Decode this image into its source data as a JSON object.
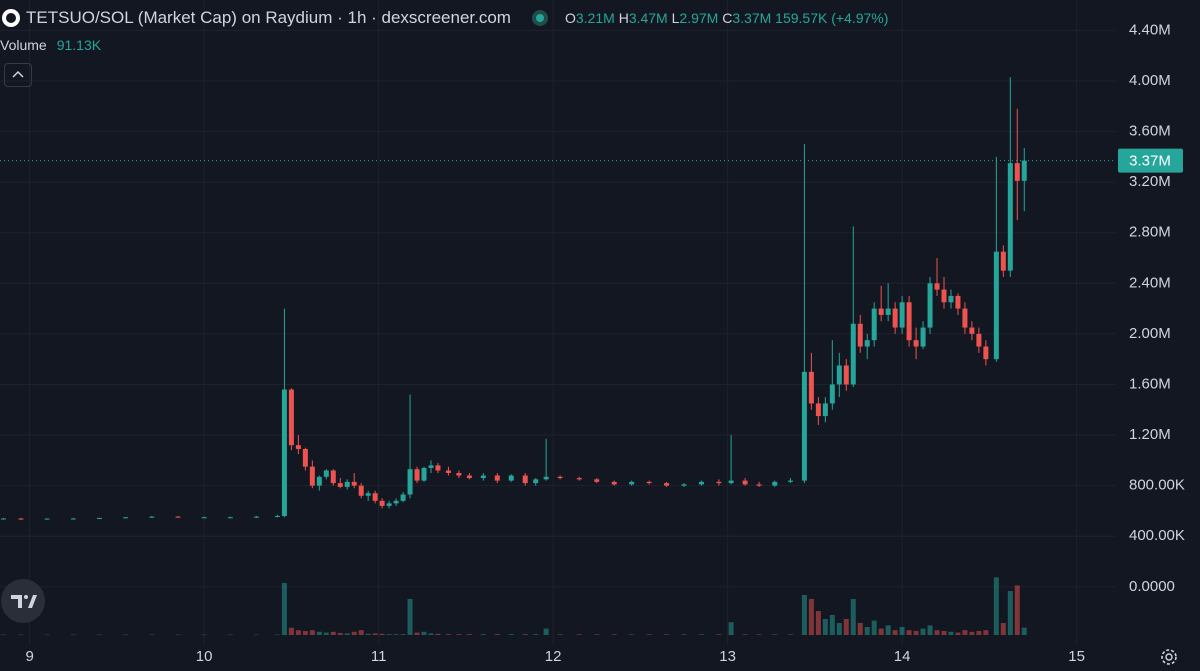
{
  "chart_data": {
    "type": "candlestick",
    "title": "TETSUO/SOL (Market Cap) on Raydium · 1h · dexscreener.com",
    "ohlc_letters": [
      "O",
      "H",
      "L",
      "C"
    ],
    "legend": [
      {
        "value": 3210000,
        "label": "3.21M"
      },
      {
        "value": 3470000,
        "label": "3.47M"
      },
      {
        "value": 2970000,
        "label": "2.97M"
      },
      {
        "value": 3370000,
        "label": "3.37M"
      }
    ],
    "change": {
      "value": 159570,
      "label": "159.57K (+4.97%)"
    },
    "volume_title": "Volume",
    "volume_legend": {
      "value": 91130,
      "label": "91.13K"
    },
    "last_price": {
      "value": 3370000,
      "label": "3.37M"
    },
    "up_color": "#26a69a",
    "down_color": "#ef5350",
    "x": [
      8.85,
      8.95,
      9.1,
      9.25,
      9.4,
      9.55,
      9.7,
      9.85,
      10,
      10.15,
      10.3,
      10.42,
      10.46,
      10.5,
      10.54,
      10.58,
      10.62,
      10.66,
      10.7,
      10.74,
      10.78,
      10.82,
      10.86,
      10.9,
      10.94,
      10.98,
      11.02,
      11.06,
      11.1,
      11.14,
      11.18,
      11.22,
      11.26,
      11.3,
      11.34,
      11.4,
      11.46,
      11.52,
      11.6,
      11.68,
      11.76,
      11.84,
      11.9,
      11.96,
      12.04,
      12.15,
      12.25,
      12.35,
      12.45,
      12.55,
      12.65,
      12.75,
      12.85,
      12.95,
      13.02,
      13.1,
      13.18,
      13.27,
      13.36,
      13.44,
      13.48,
      13.52,
      13.56,
      13.6,
      13.64,
      13.68,
      13.72,
      13.76,
      13.8,
      13.84,
      13.88,
      13.92,
      13.96,
      14,
      14.04,
      14.08,
      14.12,
      14.16,
      14.2,
      14.24,
      14.28,
      14.32,
      14.36,
      14.4,
      14.44,
      14.48,
      14.54,
      14.58,
      14.62,
      14.66,
      14.7
    ],
    "open": [
      540000,
      540000,
      535000,
      540000,
      540000,
      545000,
      550000,
      555000,
      550000,
      550000,
      550000,
      555000,
      560000,
      1560000,
      1120000,
      1090000,
      950000,
      800000,
      870000,
      920000,
      820000,
      790000,
      830000,
      800000,
      720000,
      740000,
      680000,
      640000,
      660000,
      680000,
      730000,
      930000,
      840000,
      940000,
      960000,
      920000,
      900000,
      880000,
      860000,
      880000,
      840000,
      880000,
      820000,
      850000,
      870000,
      860000,
      850000,
      830000,
      810000,
      830000,
      820000,
      800000,
      810000,
      830000,
      820000,
      840000,
      810000,
      800000,
      830000,
      840000,
      1700000,
      1450000,
      1350000,
      1450000,
      1600000,
      1750000,
      1600000,
      2080000,
      1900000,
      1950000,
      2200000,
      2150000,
      2200000,
      2050000,
      2250000,
      1950000,
      1900000,
      2050000,
      2400000,
      2350000,
      2250000,
      2300000,
      2200000,
      2050000,
      2000000,
      1900000,
      1800000,
      2650000,
      2500000,
      3350000,
      3210000
    ],
    "high": [
      545000,
      545000,
      540000,
      545000,
      545000,
      550000,
      560000,
      560000,
      555000,
      555000,
      560000,
      570000,
      2200000,
      1570000,
      1200000,
      1100000,
      1000000,
      880000,
      930000,
      930000,
      860000,
      850000,
      900000,
      820000,
      760000,
      760000,
      700000,
      680000,
      700000,
      750000,
      1520000,
      950000,
      950000,
      1000000,
      980000,
      950000,
      920000,
      900000,
      900000,
      900000,
      890000,
      900000,
      860000,
      1170000,
      880000,
      870000,
      860000,
      840000,
      840000,
      840000,
      830000,
      820000,
      840000,
      850000,
      1200000,
      860000,
      830000,
      840000,
      860000,
      3500000,
      1850000,
      1500000,
      1500000,
      1950000,
      1850000,
      1800000,
      2850000,
      2150000,
      2000000,
      2250000,
      2380000,
      2400000,
      2250000,
      2300000,
      2300000,
      2050000,
      2100000,
      2450000,
      2600000,
      2450000,
      2350000,
      2320000,
      2250000,
      2100000,
      2050000,
      1950000,
      3400000,
      2700000,
      4030000,
      3780000,
      3470000
    ],
    "low": [
      535000,
      530000,
      530000,
      535000,
      535000,
      540000,
      545000,
      550000,
      545000,
      545000,
      545000,
      550000,
      550000,
      1080000,
      1050000,
      920000,
      780000,
      760000,
      850000,
      800000,
      780000,
      770000,
      780000,
      700000,
      680000,
      660000,
      620000,
      620000,
      640000,
      670000,
      700000,
      820000,
      830000,
      900000,
      900000,
      880000,
      860000,
      850000,
      840000,
      820000,
      830000,
      800000,
      800000,
      840000,
      850000,
      840000,
      820000,
      800000,
      800000,
      810000,
      790000,
      790000,
      800000,
      800000,
      810000,
      800000,
      790000,
      790000,
      820000,
      820000,
      1400000,
      1280000,
      1300000,
      1400000,
      1500000,
      1550000,
      1580000,
      1850000,
      1800000,
      1900000,
      2100000,
      2100000,
      2000000,
      2000000,
      1900000,
      1800000,
      1880000,
      2000000,
      2300000,
      2200000,
      2200000,
      2150000,
      2000000,
      1950000,
      1850000,
      1750000,
      1780000,
      2450000,
      2450000,
      2900000,
      2970000
    ],
    "close": [
      540000,
      535000,
      540000,
      540000,
      545000,
      550000,
      555000,
      550000,
      550000,
      550000,
      555000,
      560000,
      1560000,
      1120000,
      1090000,
      950000,
      800000,
      870000,
      920000,
      820000,
      790000,
      830000,
      800000,
      720000,
      740000,
      680000,
      640000,
      660000,
      680000,
      730000,
      930000,
      840000,
      940000,
      960000,
      920000,
      900000,
      880000,
      860000,
      880000,
      840000,
      880000,
      820000,
      850000,
      870000,
      860000,
      850000,
      830000,
      810000,
      830000,
      820000,
      800000,
      810000,
      830000,
      820000,
      840000,
      810000,
      800000,
      830000,
      840000,
      1700000,
      1450000,
      1350000,
      1450000,
      1600000,
      1750000,
      1600000,
      2080000,
      1900000,
      1950000,
      2200000,
      2150000,
      2200000,
      2050000,
      2250000,
      1950000,
      1900000,
      2050000,
      2400000,
      2350000,
      2250000,
      2300000,
      2200000,
      2050000,
      2000000,
      1900000,
      1800000,
      2650000,
      2500000,
      3350000,
      3210000,
      3370000
    ],
    "volume": [
      5000,
      5000,
      5000,
      5000,
      5000,
      5000,
      5000,
      5000,
      5000,
      5000,
      5000,
      5000,
      650000,
      90000,
      60000,
      50000,
      60000,
      40000,
      30000,
      40000,
      25000,
      20000,
      40000,
      60000,
      15000,
      20000,
      15000,
      10000,
      10000,
      10000,
      450000,
      30000,
      40000,
      20000,
      15000,
      10000,
      10000,
      10000,
      10000,
      10000,
      10000,
      10000,
      10000,
      80000,
      8000,
      8000,
      8000,
      8000,
      8000,
      8000,
      8000,
      8000,
      8000,
      8000,
      160000,
      8000,
      8000,
      8000,
      8000,
      500000,
      450000,
      300000,
      200000,
      250000,
      150000,
      200000,
      450000,
      150000,
      100000,
      180000,
      80000,
      120000,
      60000,
      100000,
      60000,
      50000,
      80000,
      120000,
      60000,
      50000,
      40000,
      30000,
      60000,
      40000,
      50000,
      60000,
      720000,
      150000,
      550000,
      620000,
      91130
    ],
    "vlim": [
      0,
      1000000
    ],
    "xlim": [
      8.83,
      15.22
    ],
    "xticks": [
      9,
      10,
      11,
      12,
      13,
      14,
      15
    ],
    "ylim": [
      -460000,
      4640000
    ],
    "yticks": [
      {
        "value": 0,
        "label": "0.0000"
      },
      {
        "value": 400000,
        "label": "400.00K"
      },
      {
        "value": 800000,
        "label": "800.00K"
      },
      {
        "value": 1200000,
        "label": "1.20M"
      },
      {
        "value": 1600000,
        "label": "1.60M"
      },
      {
        "value": 2000000,
        "label": "2.00M"
      },
      {
        "value": 2400000,
        "label": "2.40M"
      },
      {
        "value": 2800000,
        "label": "2.80M"
      },
      {
        "value": 3200000,
        "label": "3.20M"
      },
      {
        "value": 3600000,
        "label": "3.60M"
      },
      {
        "value": 4000000,
        "label": "4.00M"
      },
      {
        "value": 4400000,
        "label": "4.40M"
      }
    ],
    "grid": true
  }
}
